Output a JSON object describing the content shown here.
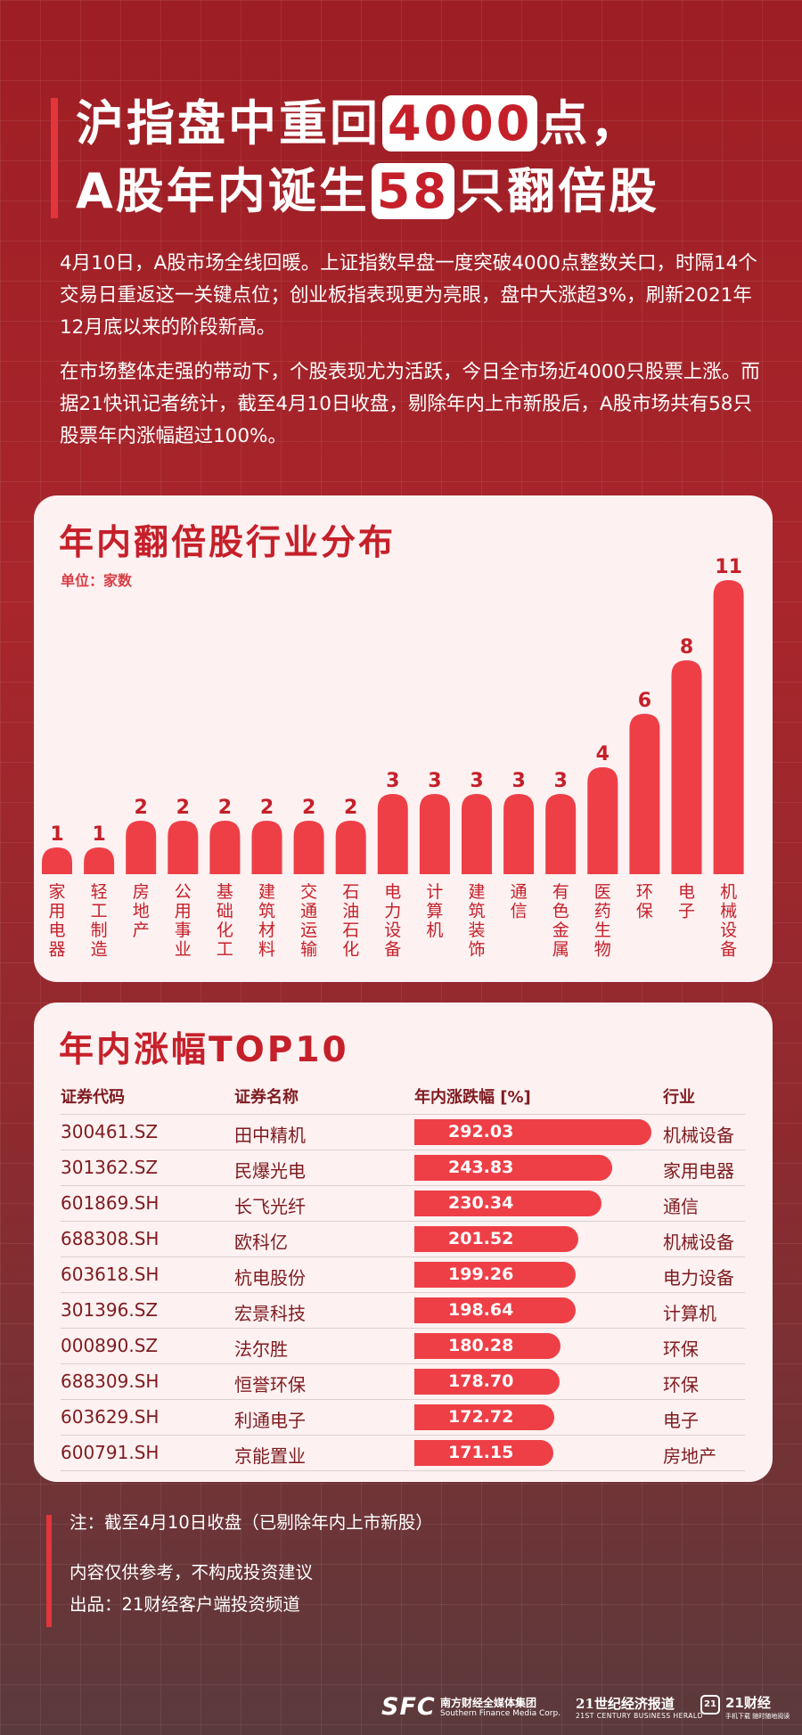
{
  "title": {
    "line1_a": "沪指盘中重回",
    "line1_hl": "4000",
    "line1_b": "点，",
    "line2_a": "A股年内诞生",
    "line2_hl": "58",
    "line2_b": "只翻倍股"
  },
  "paragraphs": [
    "4月10日，A股市场全线回暖。上证指数早盘一度突破4000点整数关口，时隔14个交易日重返这一关键点位；创业板指表现更为亮眼，盘中大涨超3%，刷新2021年12月底以来的阶段新高。",
    "在市场整体走强的带动下，个股表现尤为活跃，今日全市场近4000只股票上涨。而据21快讯记者统计，截至4月10日收盘，剔除年内上市新股后，A股市场共有58只股票年内涨幅超过100%。"
  ],
  "chart_data": {
    "type": "bar",
    "title": "年内翻倍股行业分布",
    "unit_label": "单位：家数",
    "categories": [
      "家用电器",
      "轻工制造",
      "房地产",
      "公用事业",
      "基础化工",
      "建筑材料",
      "交通运输",
      "石油石化",
      "电力设备",
      "计算机",
      "建筑装饰",
      "通信",
      "有色金属",
      "医药生物",
      "环保",
      "电子",
      "机械设备"
    ],
    "values": [
      1,
      1,
      2,
      2,
      2,
      2,
      2,
      2,
      3,
      3,
      3,
      3,
      3,
      4,
      6,
      8,
      11
    ],
    "ylim": [
      0,
      11
    ],
    "color": "#ee3f47",
    "grid": false,
    "legend": "none"
  },
  "table": {
    "title": "年内涨幅TOP10",
    "headers": [
      "证券代码",
      "证券名称",
      "年内涨跌幅 [%]",
      "行业"
    ],
    "bar_color": "#ee3f47",
    "bar_max": 292.03,
    "rows": [
      {
        "code": "300461.SZ",
        "name": "田中精机",
        "pct": "292.03",
        "industry": "机械设备"
      },
      {
        "code": "301362.SZ",
        "name": "民爆光电",
        "pct": "243.83",
        "industry": "家用电器"
      },
      {
        "code": "601869.SH",
        "name": "长飞光纤",
        "pct": "230.34",
        "industry": "通信"
      },
      {
        "code": "688308.SH",
        "name": "欧科亿",
        "pct": "201.52",
        "industry": "机械设备"
      },
      {
        "code": "603618.SH",
        "name": "杭电股份",
        "pct": "199.26",
        "industry": "电力设备"
      },
      {
        "code": "301396.SZ",
        "name": "宏景科技",
        "pct": "198.64",
        "industry": "计算机"
      },
      {
        "code": "000890.SZ",
        "name": "法尔胜",
        "pct": "180.28",
        "industry": "环保"
      },
      {
        "code": "688309.SH",
        "name": "恒誉环保",
        "pct": "178.70",
        "industry": "环保"
      },
      {
        "code": "603629.SH",
        "name": "利通电子",
        "pct": "172.72",
        "industry": "电子"
      },
      {
        "code": "600791.SH",
        "name": "京能置业",
        "pct": "171.15",
        "industry": "房地产"
      }
    ]
  },
  "notes": {
    "note1": "注：截至4月10日收盘（已剔除年内上市新股）",
    "note2": "内容仅供参考，不构成投资建议",
    "note3": "出品：21财经客户端投资频道"
  },
  "footer": {
    "sfc_logo": "SFC",
    "sfc_cn": "南方财经全媒体集团",
    "sfc_en": "Southern Finance Media Corp.",
    "cbh_cn": "21世纪经济报道",
    "cbh_en": "21ST CENTURY BUSINESS HERALD",
    "box_21": "21",
    "cj_cn": "21财经",
    "cj_en": "手机下载 随时随地阅读"
  }
}
